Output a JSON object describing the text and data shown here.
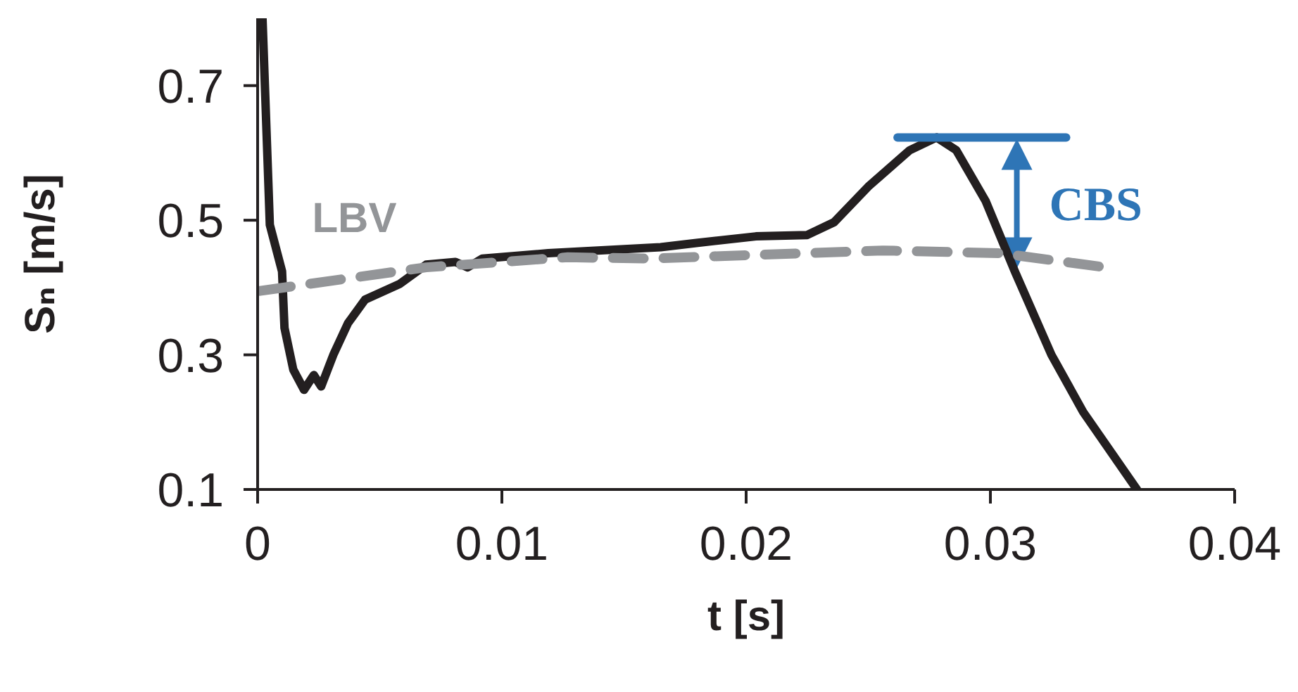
{
  "chart_data": {
    "type": "line",
    "xlabel": "t [s]",
    "ylabel": "Sₙ [m/s]",
    "xlim": [
      0,
      0.04
    ],
    "ylim": [
      0.1,
      0.8
    ],
    "xticks": [
      0,
      0.01,
      0.02,
      0.03,
      0.04
    ],
    "yticks": [
      0.1,
      0.3,
      0.5,
      0.7
    ],
    "marker": "none",
    "series": [
      {
        "color": "#231f20",
        "line_style": "solid",
        "x": [
          0.0002,
          0.0005,
          0.001,
          0.0011,
          0.00146,
          0.0019,
          0.0023,
          0.0026,
          0.0031,
          0.0037,
          0.0044,
          0.0058,
          0.0069,
          0.0081,
          0.0086,
          0.0092,
          0.0119,
          0.0165,
          0.0179,
          0.0204,
          0.0225,
          0.0236,
          0.025,
          0.0267,
          0.0278,
          0.0286,
          0.0298,
          0.031,
          0.0325,
          0.0338,
          0.036
        ],
        "values": [
          0.8,
          0.493,
          0.424,
          0.34,
          0.278,
          0.248,
          0.27,
          0.253,
          0.3,
          0.347,
          0.382,
          0.405,
          0.434,
          0.438,
          0.43,
          0.443,
          0.451,
          0.46,
          0.466,
          0.476,
          0.478,
          0.497,
          0.55,
          0.604,
          0.623,
          0.604,
          0.529,
          0.424,
          0.3,
          0.215,
          0.1
        ]
      },
      {
        "name": "LBV",
        "color": "#939598",
        "line_style": "dashed",
        "x": [
          0.0001,
          0.0069,
          0.0127,
          0.016,
          0.0256,
          0.0304,
          0.0347
        ],
        "values": [
          0.395,
          0.43,
          0.445,
          0.443,
          0.455,
          0.451,
          0.43
        ]
      },
      {
        "color": "#2e75b6",
        "line_style": "solid",
        "x": [
          0.0262,
          0.0331
        ],
        "values": [
          0.623,
          0.623
        ]
      }
    ],
    "annotations": [
      "CBS"
    ]
  }
}
